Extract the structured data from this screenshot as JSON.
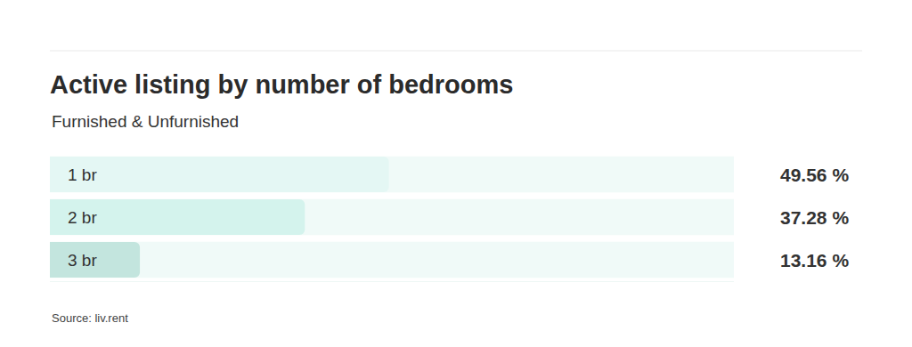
{
  "chart_data": {
    "type": "bar",
    "title": "Active listing by number of bedrooms",
    "subtitle": "Furnished & Unfurnished",
    "categories": [
      "1 br",
      "2 br",
      "3 br"
    ],
    "values": [
      49.56,
      37.28,
      13.16
    ],
    "value_labels": [
      "49.56 %",
      "37.28 %",
      "13.16 %"
    ],
    "colors": [
      "#e4f7f4",
      "#d4f3ed",
      "#c3e5de"
    ],
    "orientation": "horizontal",
    "xlim": [
      0,
      100
    ],
    "xticks": [],
    "grid": false,
    "data_labels": true,
    "tick_labels": false,
    "annotations": [
      "Source: liv.rent"
    ]
  }
}
